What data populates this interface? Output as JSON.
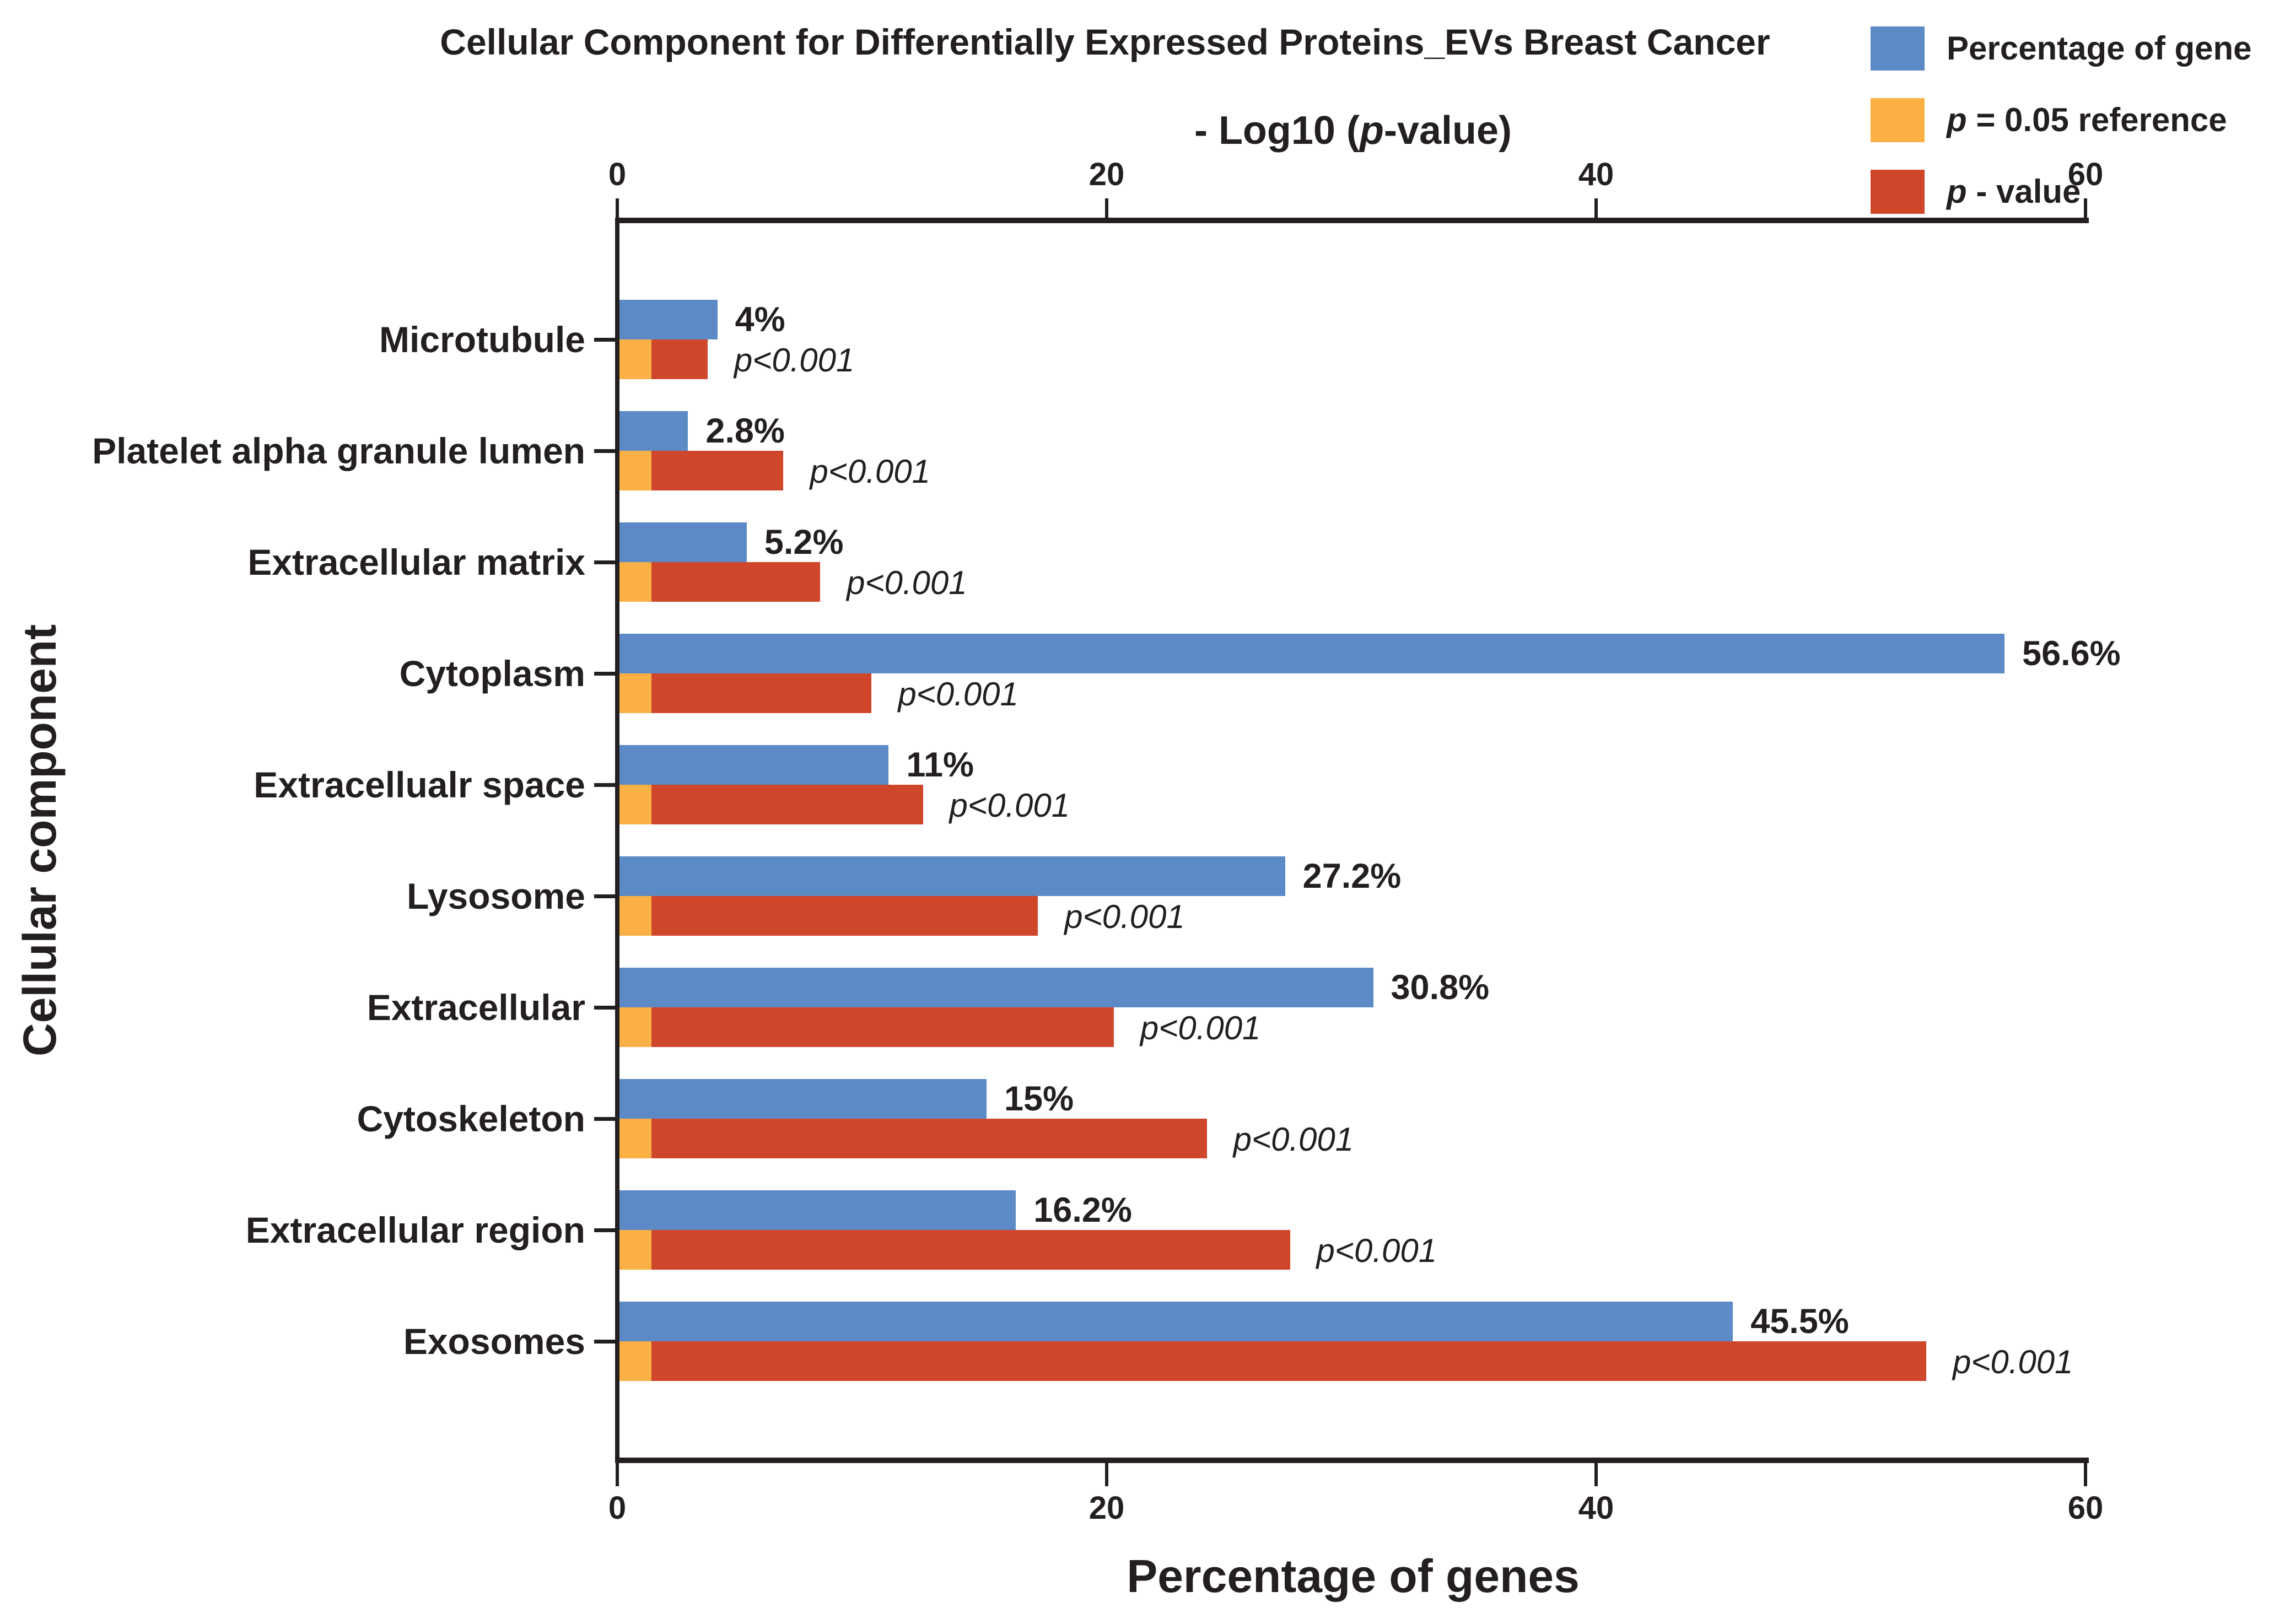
{
  "title": "Cellular Component for Differentially Expressed Proteins_EVs Breast Cancer",
  "legend": {
    "items": [
      {
        "id": "percentage-of-gene",
        "color": "#5B8AC6",
        "italic_part": "",
        "text_part": "Percentage of gene"
      },
      {
        "id": "p-reference",
        "color": "#FBB045",
        "italic_part": "p",
        "text_part": " = 0.05 reference"
      },
      {
        "id": "p-value",
        "color": "#D0462A",
        "italic_part": "p",
        "text_part": " - value"
      }
    ]
  },
  "axes": {
    "top": {
      "title_pre": "- Log10 (",
      "title_italic": "p",
      "title_post": "-value)",
      "ticks": [
        "0",
        "20",
        "40",
        "60"
      ],
      "max": 60
    },
    "bottom": {
      "title": "Percentage of genes",
      "ticks": [
        "0",
        "20",
        "40",
        "60"
      ],
      "max": 60
    },
    "left": {
      "title": "Cellular component"
    }
  },
  "chart_data": {
    "type": "bar",
    "orientation": "horizontal",
    "title": "Cellular Component for Differentially Expressed Proteins_EVs Breast Cancer",
    "xlabel_top": "- Log10 (p-value)",
    "xlabel_bottom": "Percentage of genes",
    "ylabel": "Cellular component",
    "xlim": [
      0,
      60
    ],
    "x_ticks": [
      0,
      20,
      40,
      60
    ],
    "grid": false,
    "legend_position": "top-right",
    "categories": [
      "Microtubule",
      "Platelet alpha granule lumen",
      "Extracellular matrix",
      "Cytoplasm",
      "Extracellualr space",
      "Lysosome",
      "Extracellular",
      "Cytoskeleton",
      "Extracellular region",
      "Exosomes"
    ],
    "series": [
      {
        "name": "Percentage of gene",
        "color": "#5B8AC6",
        "values": [
          4,
          2.8,
          5.2,
          56.6,
          11,
          27.2,
          30.8,
          15,
          16.2,
          45.5
        ],
        "value_labels": [
          "4%",
          "2.8%",
          "5.2%",
          "56.6%",
          "11%",
          "27.2%",
          "30.8%",
          "15%",
          "16.2%",
          "45.5%"
        ]
      },
      {
        "name": "p = 0.05 reference",
        "color": "#FBB045",
        "values": [
          1.3,
          1.3,
          1.3,
          1.3,
          1.3,
          1.3,
          1.3,
          1.3,
          1.3,
          1.3
        ]
      },
      {
        "name": "p - value",
        "color": "#D0462A",
        "values": [
          3.6,
          6.7,
          8.2,
          10.3,
          12.4,
          17.1,
          20.2,
          24.0,
          27.4,
          53.4
        ],
        "value_labels": [
          "p<0.001",
          "p<0.001",
          "p<0.001",
          "p<0.001",
          "p<0.001",
          "p<0.001",
          "p<0.001",
          "p<0.001",
          "p<0.001",
          "p<0.001"
        ]
      }
    ]
  }
}
